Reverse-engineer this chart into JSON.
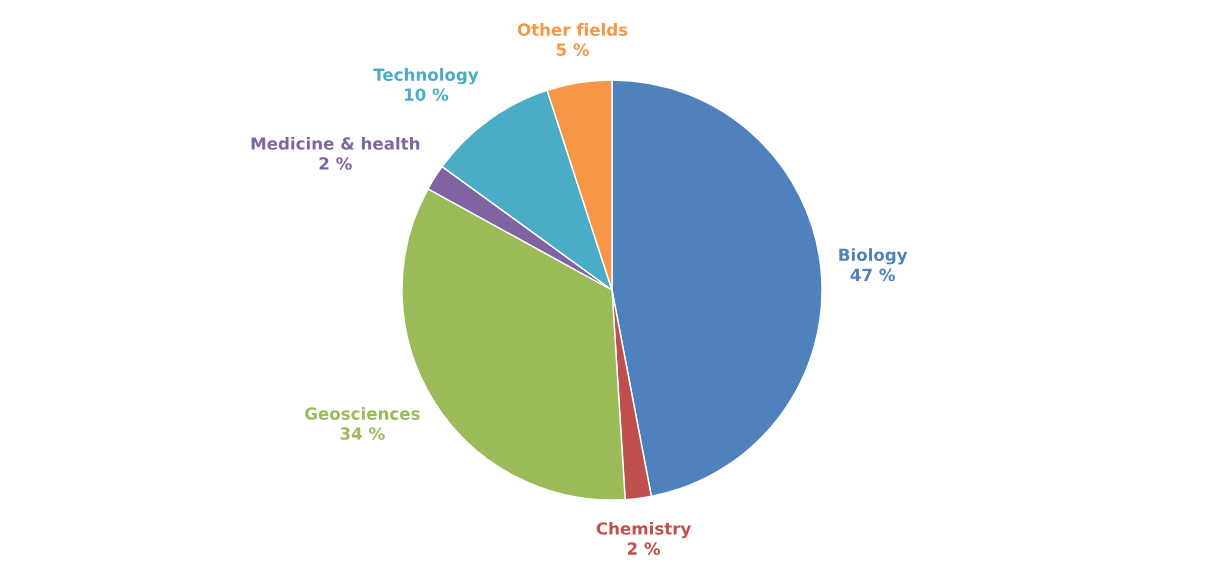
{
  "chart_data": {
    "type": "pie",
    "categories": [
      "Biology",
      "Chemistry",
      "Geosciences",
      "Medicine & health",
      "Technology",
      "Other fields"
    ],
    "values": [
      47,
      2,
      34,
      2,
      10,
      5
    ],
    "value_labels": [
      "47 %",
      "2 %",
      "34 %",
      "2 %",
      "10 %",
      "5 %"
    ],
    "colors": [
      "#4f81bd",
      "#c0504d",
      "#9bbb59",
      "#8064a2",
      "#4bacc6",
      "#f79646"
    ],
    "legend": false
  }
}
